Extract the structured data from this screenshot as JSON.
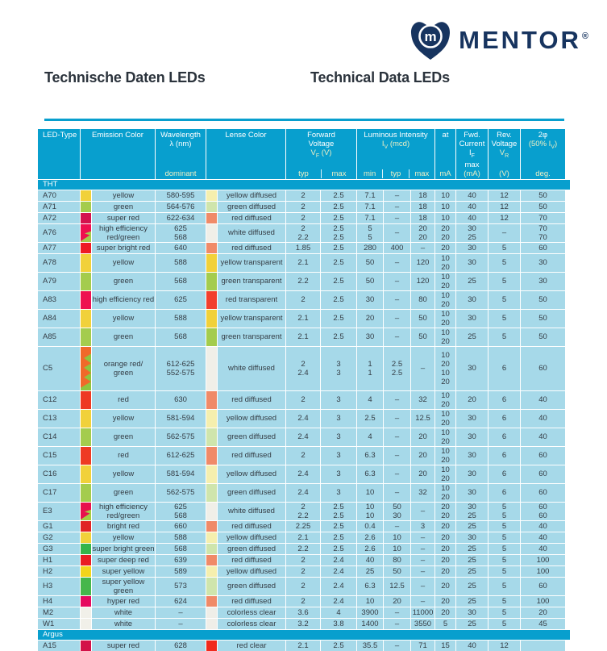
{
  "logo": {
    "text": "MENTOR",
    "reg": "®"
  },
  "titles": {
    "de": "Technische Daten LEDs",
    "en": "Technical Data LEDs"
  },
  "colors": {
    "teal": "#089fce",
    "cell_bg": "#a6d9e9",
    "header_sub": "#eef0c4",
    "navy": "#17345f",
    "title": "#2b333c"
  },
  "header": {
    "led_type": "LED-Type",
    "emission": "Emission Color",
    "wavelength_l1": "Wavelength",
    "wavelength_l2": "λ (nm)",
    "wavelength_l3": "dominant",
    "lens": "Lense Color",
    "fv_l1": "Forward",
    "fv_l2": "Voltage",
    "fv_sym": "V",
    "fv_sub": "F",
    "fv_unit": " (V)",
    "iv_l1": "Luminous Intensity",
    "iv_sym": "I",
    "iv_sub": "V",
    "iv_unit": " (mcd)",
    "at_l1": "at",
    "at_sub": "mA",
    "fwd_l1": "Fwd.",
    "fwd_l2a": "Current ",
    "fwd_sym": "I",
    "fwd_sub": "F",
    "fwd_l3": "max",
    "fwd_l4": "(mA)",
    "rev_l1": "Rev.",
    "rev_l2": "Voltage",
    "rev_sym": "V",
    "rev_sub": "R",
    "rev_l4": "(V)",
    "deg_l1": "2φ",
    "deg_l2a": "(50% ",
    "deg_sym": "I",
    "deg_sub": "V",
    "deg_l2b": ")",
    "deg_l4": "deg.",
    "sub_typ": "typ",
    "sub_max": "max",
    "sub_min": "min",
    "sub_typ2": "typ",
    "sub_max2": "max"
  },
  "rows": [
    {
      "kind": "section",
      "label": "THT"
    },
    {
      "kind": "led",
      "h": "r1",
      "type": "A70",
      "em": "yellow",
      "em_sw": {
        "k": "solid",
        "c1": "#f1d13a"
      },
      "wl": "580-595",
      "lens": "yellow diffused",
      "lens_sw": {
        "k": "solid",
        "c1": "#f5efae"
      },
      "vt": "2",
      "vm": "2.5",
      "imin": "7.1",
      "ityp": "–",
      "imax": "18",
      "at": "10",
      "ifm": "40",
      "vr": "12",
      "deg": "50"
    },
    {
      "kind": "led",
      "h": "r1",
      "type": "A71",
      "em": "green",
      "em_sw": {
        "k": "solid",
        "c1": "#a4cc4d"
      },
      "wl": "564-576",
      "lens": "green diffused",
      "lens_sw": {
        "k": "solid",
        "c1": "#cfe5ac"
      },
      "vt": "2",
      "vm": "2.5",
      "imin": "7.1",
      "ityp": "–",
      "imax": "18",
      "at": "10",
      "ifm": "40",
      "vr": "12",
      "deg": "50"
    },
    {
      "kind": "led",
      "h": "r1",
      "type": "A72",
      "em": "super red",
      "em_sw": {
        "k": "solid",
        "c1": "#d4134e"
      },
      "wl": "622-634",
      "lens": "red diffused",
      "lens_sw": {
        "k": "solid",
        "c1": "#f08a68"
      },
      "vt": "2",
      "vm": "2.5",
      "imin": "7.1",
      "ityp": "–",
      "imax": "18",
      "at": "10",
      "ifm": "40",
      "vr": "12",
      "deg": "70"
    },
    {
      "kind": "led",
      "h": "r2",
      "type": "A76",
      "em": "high efficiency\nred/green",
      "em_sw": {
        "k": "diag",
        "c1": "#ee1050",
        "c2": "#a4cc4d"
      },
      "wl": "625\n568",
      "lens": "white diffused",
      "lens_sw": {
        "k": "solid",
        "c1": "#f0efe8"
      },
      "vt": "2\n2.2",
      "vm": "2.5\n2.5",
      "imin": "5\n5",
      "ityp": "–",
      "imax": "20\n20",
      "at": "20\n20",
      "ifm": "30\n25",
      "vr": "–",
      "deg": "70\n70"
    },
    {
      "kind": "led",
      "h": "r1",
      "type": "A77",
      "em": "super bright red",
      "em_sw": {
        "k": "solid",
        "c1": "#ee1b24"
      },
      "wl": "640",
      "lens": "red diffused",
      "lens_sw": {
        "k": "solid",
        "c1": "#f08a68"
      },
      "vt": "1.85",
      "vm": "2.5",
      "imin": "280",
      "ityp": "400",
      "imax": "–",
      "at": "20",
      "ifm": "30",
      "vr": "5",
      "deg": "60"
    },
    {
      "kind": "led",
      "h": "r2",
      "type": "A78",
      "em": "yellow",
      "em_sw": {
        "k": "solid",
        "c1": "#f1d13a"
      },
      "wl": "588",
      "lens": "yellow transparent",
      "lens_sw": {
        "k": "solid",
        "c1": "#f1d13a"
      },
      "vt": "2.1",
      "vm": "2.5",
      "imin": "50",
      "ityp": "–",
      "imax": "120",
      "at": "10\n20",
      "ifm": "30",
      "vr": "5",
      "deg": "30"
    },
    {
      "kind": "led",
      "h": "r2",
      "type": "A79",
      "em": "green",
      "em_sw": {
        "k": "solid",
        "c1": "#a4cc4d"
      },
      "wl": "568",
      "lens": "green transparent",
      "lens_sw": {
        "k": "solid",
        "c1": "#a4cc4d"
      },
      "vt": "2.2",
      "vm": "2.5",
      "imin": "50",
      "ityp": "–",
      "imax": "120",
      "at": "10\n20",
      "ifm": "25",
      "vr": "5",
      "deg": "30"
    },
    {
      "kind": "led",
      "h": "r2",
      "type": "A83",
      "em": "high efficiency red",
      "em_sw": {
        "k": "solid",
        "c1": "#ee1050"
      },
      "wl": "625",
      "lens": "red transparent",
      "lens_sw": {
        "k": "solid",
        "c1": "#f23f2d"
      },
      "vt": "2",
      "vm": "2.5",
      "imin": "30",
      "ityp": "–",
      "imax": "80",
      "at": "10\n20",
      "ifm": "30",
      "vr": "5",
      "deg": "50"
    },
    {
      "kind": "led",
      "h": "r2",
      "type": "A84",
      "em": "yellow",
      "em_sw": {
        "k": "solid",
        "c1": "#f1d13a"
      },
      "wl": "588",
      "lens": "yellow transparent",
      "lens_sw": {
        "k": "solid",
        "c1": "#f1d13a"
      },
      "vt": "2.1",
      "vm": "2.5",
      "imin": "20",
      "ityp": "–",
      "imax": "50",
      "at": "10\n20",
      "ifm": "30",
      "vr": "5",
      "deg": "50"
    },
    {
      "kind": "led",
      "h": "r2",
      "type": "A85",
      "em": "green",
      "em_sw": {
        "k": "solid",
        "c1": "#a4cc4d"
      },
      "wl": "568",
      "lens": "green transparent",
      "lens_sw": {
        "k": "solid",
        "c1": "#a4cc4d"
      },
      "vt": "2.1",
      "vm": "2.5",
      "imin": "30",
      "ityp": "–",
      "imax": "50",
      "at": "10\n20",
      "ifm": "25",
      "vr": "5",
      "deg": "50"
    },
    {
      "kind": "led",
      "h": "r4",
      "type": "C5",
      "em": "orange red/\ngreen",
      "em_sw": {
        "k": "zigzag",
        "c1": "#f0692a",
        "c2": "#8fc43e"
      },
      "wl": "612-625\n552-575",
      "lens": "white diffused",
      "lens_sw": {
        "k": "solid",
        "c1": "#f0efe8"
      },
      "vt": "2\n2.4",
      "vm": "3\n3",
      "imin": "1\n1",
      "ityp": "2.5\n2.5",
      "imax": "–",
      "at": "10\n20\n10\n20",
      "ifm": "30",
      "vr": "6",
      "deg": "60"
    },
    {
      "kind": "led",
      "h": "r2",
      "type": "C12",
      "em": "red",
      "em_sw": {
        "k": "solid",
        "c1": "#ee3a23"
      },
      "wl": "630",
      "lens": "red diffused",
      "lens_sw": {
        "k": "solid",
        "c1": "#f08a68"
      },
      "vt": "2",
      "vm": "3",
      "imin": "4",
      "ityp": "–",
      "imax": "32",
      "at": "10\n20",
      "ifm": "20",
      "vr": "6",
      "deg": "40"
    },
    {
      "kind": "led",
      "h": "r2",
      "type": "C13",
      "em": "yellow",
      "em_sw": {
        "k": "solid",
        "c1": "#f1d13a"
      },
      "wl": "581-594",
      "lens": "yellow diffused",
      "lens_sw": {
        "k": "solid",
        "c1": "#f5efae"
      },
      "vt": "2.4",
      "vm": "3",
      "imin": "2.5",
      "ityp": "–",
      "imax": "12.5",
      "at": "10\n20",
      "ifm": "30",
      "vr": "6",
      "deg": "40"
    },
    {
      "kind": "led",
      "h": "r2",
      "type": "C14",
      "em": "green",
      "em_sw": {
        "k": "solid",
        "c1": "#a4cc4d"
      },
      "wl": "562-575",
      "lens": "green diffused",
      "lens_sw": {
        "k": "solid",
        "c1": "#cfe5ac"
      },
      "vt": "2.4",
      "vm": "3",
      "imin": "4",
      "ityp": "–",
      "imax": "20",
      "at": "10\n20",
      "ifm": "30",
      "vr": "6",
      "deg": "40"
    },
    {
      "kind": "led",
      "h": "r2",
      "type": "C15",
      "em": "red",
      "em_sw": {
        "k": "solid",
        "c1": "#ee3a23"
      },
      "wl": "612-625",
      "lens": "red diffused",
      "lens_sw": {
        "k": "solid",
        "c1": "#f08a68"
      },
      "vt": "2",
      "vm": "3",
      "imin": "6.3",
      "ityp": "–",
      "imax": "20",
      "at": "10\n20",
      "ifm": "30",
      "vr": "6",
      "deg": "60"
    },
    {
      "kind": "led",
      "h": "r2",
      "type": "C16",
      "em": "yellow",
      "em_sw": {
        "k": "solid",
        "c1": "#f1d13a"
      },
      "wl": "581-594",
      "lens": "yellow diffused",
      "lens_sw": {
        "k": "solid",
        "c1": "#f5efae"
      },
      "vt": "2.4",
      "vm": "3",
      "imin": "6.3",
      "ityp": "–",
      "imax": "20",
      "at": "10\n20",
      "ifm": "30",
      "vr": "6",
      "deg": "60"
    },
    {
      "kind": "led",
      "h": "r2",
      "type": "C17",
      "em": "green",
      "em_sw": {
        "k": "solid",
        "c1": "#a4cc4d"
      },
      "wl": "562-575",
      "lens": "green diffused",
      "lens_sw": {
        "k": "solid",
        "c1": "#cfe5ac"
      },
      "vt": "2.4",
      "vm": "3",
      "imin": "10",
      "ityp": "–",
      "imax": "32",
      "at": "10\n20",
      "ifm": "30",
      "vr": "6",
      "deg": "60"
    },
    {
      "kind": "led",
      "h": "r2",
      "type": "E3",
      "em": "high efficiency\nred/green",
      "em_sw": {
        "k": "diag",
        "c1": "#e8114d",
        "c2": "#a6cd43"
      },
      "wl": "625\n568",
      "lens": "white diffused",
      "lens_sw": {
        "k": "solid",
        "c1": "#f0efe8"
      },
      "vt": "2\n2.2",
      "vm": "2.5\n2.5",
      "imin": "10\n10",
      "ityp": "50\n30",
      "imax": "–",
      "at": "20\n20",
      "ifm": "30\n25",
      "vr": "5\n5",
      "deg": "60\n60"
    },
    {
      "kind": "led",
      "h": "r1",
      "type": "G1",
      "em": "bright red",
      "em_sw": {
        "k": "solid",
        "c1": "#e02323"
      },
      "wl": "660",
      "lens": "red diffused",
      "lens_sw": {
        "k": "solid",
        "c1": "#f08a68"
      },
      "vt": "2.25",
      "vm": "2.5",
      "imin": "0.4",
      "ityp": "–",
      "imax": "3",
      "at": "20",
      "ifm": "25",
      "vr": "5",
      "deg": "40"
    },
    {
      "kind": "led",
      "h": "r1",
      "type": "G2",
      "em": "yellow",
      "em_sw": {
        "k": "solid",
        "c1": "#f1d13a"
      },
      "wl": "588",
      "lens": "yellow diffused",
      "lens_sw": {
        "k": "solid",
        "c1": "#f5efae"
      },
      "vt": "2.1",
      "vm": "2.5",
      "imin": "2.6",
      "ityp": "10",
      "imax": "–",
      "at": "20",
      "ifm": "30",
      "vr": "5",
      "deg": "40"
    },
    {
      "kind": "led",
      "h": "r1",
      "type": "G3",
      "em": "super bright green",
      "em_sw": {
        "k": "solid",
        "c1": "#35b44a"
      },
      "wl": "568",
      "lens": "green diffused",
      "lens_sw": {
        "k": "solid",
        "c1": "#cfe5ac"
      },
      "vt": "2.2",
      "vm": "2.5",
      "imin": "2.6",
      "ityp": "10",
      "imax": "–",
      "at": "20",
      "ifm": "25",
      "vr": "5",
      "deg": "40"
    },
    {
      "kind": "led",
      "h": "r1",
      "type": "H1",
      "em": "super deep red",
      "em_sw": {
        "k": "solid",
        "c1": "#ea1c23"
      },
      "wl": "639",
      "lens": "red diffused",
      "lens_sw": {
        "k": "solid",
        "c1": "#f08a68"
      },
      "vt": "2",
      "vm": "2.4",
      "imin": "40",
      "ityp": "80",
      "imax": "–",
      "at": "20",
      "ifm": "25",
      "vr": "5",
      "deg": "100"
    },
    {
      "kind": "led",
      "h": "r1",
      "type": "H2",
      "em": "super yellow",
      "em_sw": {
        "k": "solid",
        "c1": "#f3d41c"
      },
      "wl": "589",
      "lens": "yellow diffused",
      "lens_sw": {
        "k": "solid",
        "c1": "#f5efae"
      },
      "vt": "2",
      "vm": "2.4",
      "imin": "25",
      "ityp": "50",
      "imax": "–",
      "at": "20",
      "ifm": "25",
      "vr": "5",
      "deg": "100"
    },
    {
      "kind": "led",
      "h": "r1",
      "type": "H3",
      "em": "super yellow green",
      "em_sw": {
        "k": "solid",
        "c1": "#46b74b"
      },
      "wl": "573",
      "lens": "green diffused",
      "lens_sw": {
        "k": "solid",
        "c1": "#cfe5ac"
      },
      "vt": "2",
      "vm": "2.4",
      "imin": "6.3",
      "ityp": "12.5",
      "imax": "–",
      "at": "20",
      "ifm": "25",
      "vr": "5",
      "deg": "60"
    },
    {
      "kind": "led",
      "h": "r1",
      "type": "H4",
      "em": "hyper red",
      "em_sw": {
        "k": "solid",
        "c1": "#e60a5f"
      },
      "wl": "624",
      "lens": "red diffused",
      "lens_sw": {
        "k": "solid",
        "c1": "#f08a68"
      },
      "vt": "2",
      "vm": "2.4",
      "imin": "10",
      "ityp": "20",
      "imax": "–",
      "at": "20",
      "ifm": "25",
      "vr": "5",
      "deg": "100"
    },
    {
      "kind": "led",
      "h": "r1",
      "type": "M2",
      "em": "white",
      "em_sw": {
        "k": "solid",
        "c1": "#f1f0e9"
      },
      "wl": "–",
      "lens": "colorless clear",
      "lens_sw": {
        "k": "solid",
        "c1": "#efeee8"
      },
      "vt": "3.6",
      "vm": "4",
      "imin": "3900",
      "ityp": "–",
      "imax": "11000",
      "at": "20",
      "ifm": "30",
      "vr": "5",
      "deg": "20"
    },
    {
      "kind": "led",
      "h": "r1",
      "type": "W1",
      "em": "white",
      "em_sw": {
        "k": "solid",
        "c1": "#f1f0e9"
      },
      "wl": "–",
      "lens": "colorless clear",
      "lens_sw": {
        "k": "solid",
        "c1": "#efeee8"
      },
      "vt": "3.2",
      "vm": "3.8",
      "imin": "1400",
      "ityp": "–",
      "imax": "3550",
      "at": "5",
      "ifm": "25",
      "vr": "5",
      "deg": "45"
    },
    {
      "kind": "section",
      "label": "Argus"
    },
    {
      "kind": "led",
      "h": "r1",
      "type": "A15",
      "em": "super red",
      "em_sw": {
        "k": "solid",
        "c1": "#d31148"
      },
      "wl": "628",
      "lens": "red clear",
      "lens_sw": {
        "k": "solid",
        "c1": "#f02a1d"
      },
      "vt": "2.1",
      "vm": "2.5",
      "imin": "35.5",
      "ityp": "–",
      "imax": "71",
      "at": "15",
      "ifm": "40",
      "vr": "12",
      "deg": ""
    }
  ]
}
